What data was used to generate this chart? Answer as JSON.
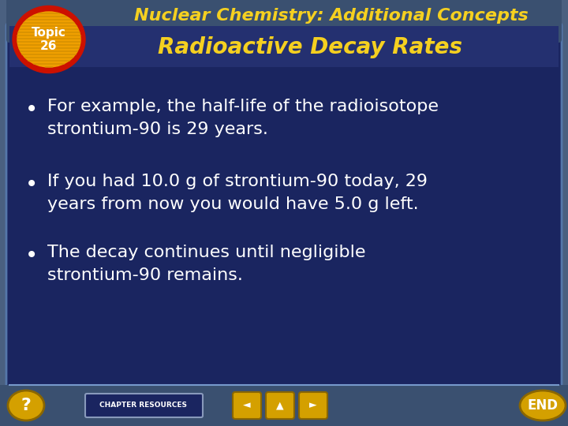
{
  "bg_outer": "#4a6080",
  "bg_inner": "#1a2560",
  "bg_inner_border": "#5577aa",
  "title_text": "Nuclear Chemistry: Additional Concepts",
  "title_color": "#f5d020",
  "title_fontsize": 16,
  "subtitle_text": "Radioactive Decay Rates",
  "subtitle_color": "#f5d020",
  "subtitle_fontsize": 20,
  "bullet_color": "#ffffff",
  "bullet_fontsize": 16,
  "bullets": [
    "For example, the half-life of the radioisotope\nstrontium-90 is 29 years.",
    "If you had 10.0 g of strontium-90 today, 29\nyears from now you would have 5.0 g left.",
    "The decay continues until negligible\nstrontium-90 remains."
  ],
  "topic_circle_red": "#cc1100",
  "topic_circle_orange": "#f0a000",
  "topic_text": "Topic\n26",
  "topic_text_color": "#ffffff",
  "footer_bg": "#3a5070",
  "footer_text": "CHAPTER RESOURCES",
  "footer_text_color": "#ffffff",
  "nav_button_color": "#d4a000",
  "end_button_color": "#d4a000",
  "end_text": "END",
  "question_button_color": "#d4a000",
  "header_bg": "#3a5070"
}
